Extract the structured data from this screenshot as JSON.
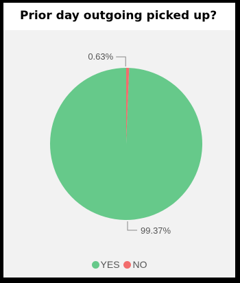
{
  "card": {
    "title": "Prior day outgoing picked up?"
  },
  "chart_data": {
    "type": "pie",
    "title": "Prior day outgoing picked up?",
    "slices": [
      {
        "label": "YES",
        "value": 99.37,
        "display": "99.37%",
        "color": "#66c98a"
      },
      {
        "label": "NO",
        "value": 0.63,
        "display": "0.63%",
        "color": "#f26d6d"
      }
    ],
    "legend": {
      "placement": "bottom-center",
      "items": [
        {
          "label": "YES",
          "color": "#66c98a"
        },
        {
          "label": "NO",
          "color": "#f26d6d"
        }
      ]
    }
  }
}
